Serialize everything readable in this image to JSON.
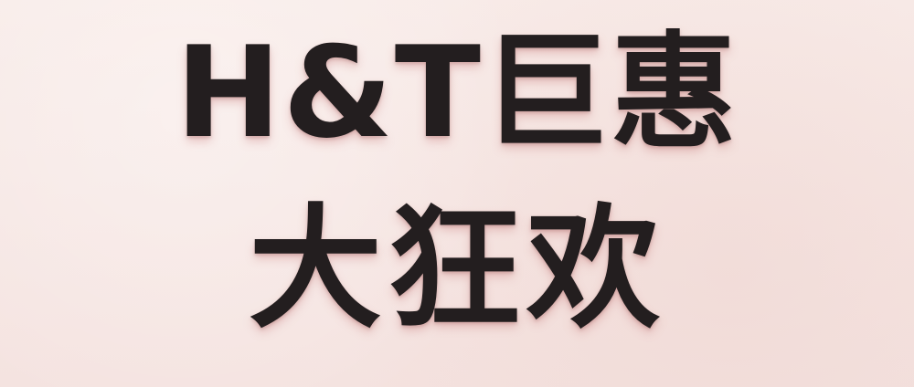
{
  "banner": {
    "headline_line1": "H&T巨惠",
    "headline_line2": "大狂欢"
  },
  "colors": {
    "background": "#f7e9e6",
    "text": "#231e1f",
    "shadow": "#c87878"
  }
}
